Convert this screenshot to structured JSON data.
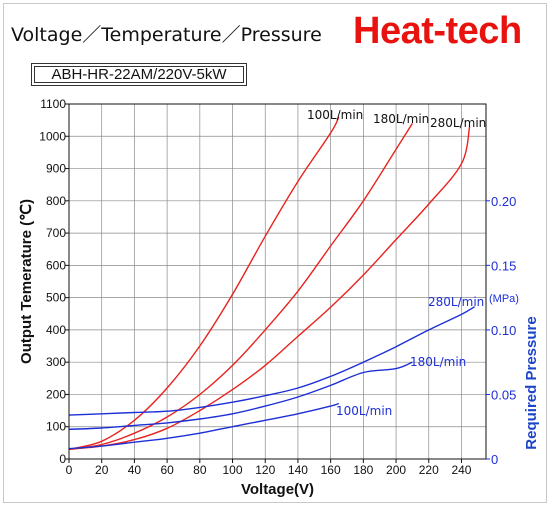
{
  "header": {
    "title": "Voltage／Temperature／Pressure",
    "brand": "Heat-tech",
    "model": "ABH-HR-22AM/220V-5kW"
  },
  "colors": {
    "temperature": "#e8231f",
    "pressure": "#1c2fd6",
    "grid": "#8a8a8a"
  },
  "chart_data": {
    "type": "line",
    "xlabel": "Voltage(V)",
    "ylabel": "Output Temerature (℃)",
    "y2label": "Required Pressure",
    "y2unit": "(MPa)",
    "xlim": [
      0,
      255
    ],
    "ylim": [
      0,
      1100
    ],
    "y2lim": [
      0,
      0.275
    ],
    "xticks": [
      0,
      20,
      40,
      60,
      80,
      100,
      120,
      140,
      160,
      180,
      200,
      220,
      240
    ],
    "yticks": [
      0,
      100,
      200,
      300,
      400,
      500,
      600,
      700,
      800,
      900,
      1000,
      1100
    ],
    "y2ticks": [
      0,
      0.05,
      0.1,
      0.15,
      0.2
    ],
    "y2ticklabels": [
      "0",
      "0.05",
      "0.10",
      "0.15",
      "0.20"
    ],
    "grid": true,
    "temperature_series": [
      {
        "name": "100L/min",
        "x": [
          0,
          20,
          40,
          60,
          80,
          100,
          120,
          140,
          160,
          165
        ],
        "y": [
          30,
          55,
          120,
          220,
          350,
          510,
          690,
          860,
          1010,
          1060
        ]
      },
      {
        "name": "180L/min",
        "x": [
          0,
          20,
          40,
          60,
          80,
          100,
          120,
          140,
          160,
          180,
          200,
          210
        ],
        "y": [
          30,
          45,
          80,
          130,
          200,
          290,
          400,
          520,
          660,
          800,
          960,
          1040
        ]
      },
      {
        "name": "280L/min",
        "x": [
          0,
          20,
          40,
          60,
          80,
          100,
          120,
          140,
          160,
          180,
          200,
          220,
          240,
          245
        ],
        "y": [
          30,
          40,
          60,
          95,
          150,
          215,
          290,
          380,
          470,
          570,
          680,
          790,
          915,
          1030
        ]
      }
    ],
    "pressure_series": [
      {
        "name": "100L/min",
        "x": [
          0,
          20,
          40,
          60,
          80,
          100,
          120,
          140,
          160,
          165
        ],
        "y": [
          0.008,
          0.01,
          0.013,
          0.016,
          0.02,
          0.025,
          0.03,
          0.035,
          0.041,
          0.043
        ]
      },
      {
        "name": "180L/min",
        "x": [
          0,
          20,
          40,
          60,
          80,
          100,
          120,
          140,
          160,
          180,
          200,
          210
        ],
        "y": [
          0.023,
          0.024,
          0.026,
          0.028,
          0.031,
          0.035,
          0.041,
          0.048,
          0.057,
          0.067,
          0.07,
          0.075
        ]
      },
      {
        "name": "280L/min",
        "x": [
          0,
          20,
          40,
          60,
          80,
          100,
          120,
          140,
          160,
          180,
          200,
          220,
          240,
          248
        ],
        "y": [
          0.034,
          0.035,
          0.036,
          0.037,
          0.04,
          0.044,
          0.049,
          0.055,
          0.064,
          0.075,
          0.087,
          0.1,
          0.112,
          0.118
        ]
      }
    ]
  }
}
